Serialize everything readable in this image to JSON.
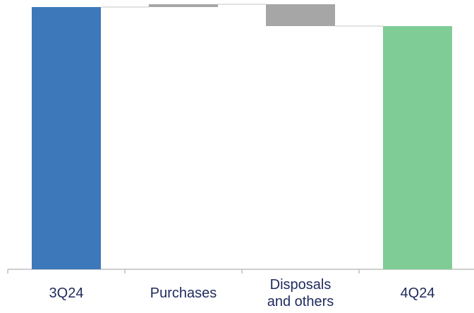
{
  "chart_data": {
    "type": "waterfall",
    "categories": [
      "3Q24",
      "Purchases",
      "Disposals and others",
      "4Q24"
    ],
    "values": [
      372,
      4,
      -31,
      345
    ],
    "totals": [
      true,
      false,
      false,
      true
    ],
    "colors": [
      "#3d78bb",
      "#a6a6a6",
      "#a6a6a6",
      "#80cc97"
    ],
    "ylim": [
      0,
      382
    ]
  }
}
